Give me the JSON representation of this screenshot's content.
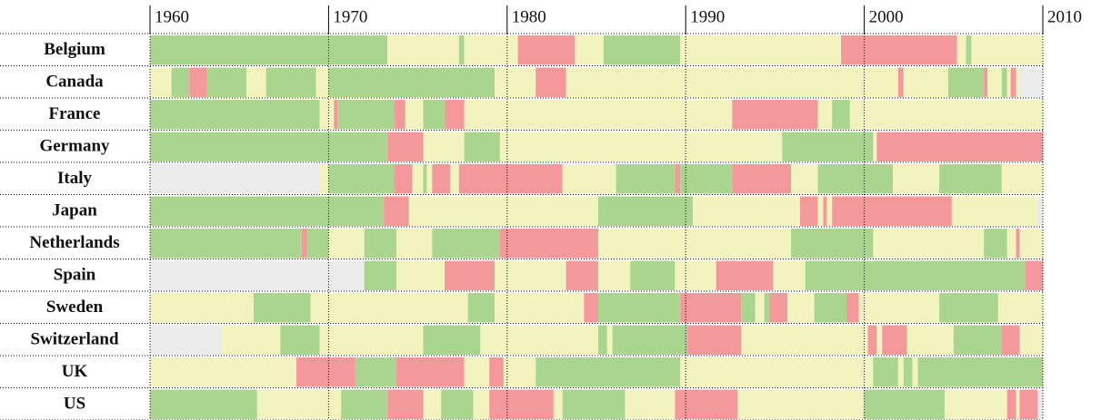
{
  "chart_data": {
    "type": "timeline",
    "xlim": [
      1960,
      2010
    ],
    "xticks": [
      1960,
      1970,
      1980,
      1990,
      2000,
      2010
    ],
    "palette": {
      "g": "#a9d58f",
      "y": "#f3f3c0",
      "r": "#f4989c",
      "n": "#ebebeb"
    },
    "rows": [
      {
        "name": "Belgium",
        "segments": [
          [
            1960,
            1973.3,
            "g"
          ],
          [
            1973.3,
            1977.3,
            "y"
          ],
          [
            1977.3,
            1977.6,
            "g"
          ],
          [
            1977.6,
            1980.6,
            "y"
          ],
          [
            1980.6,
            1983.8,
            "r"
          ],
          [
            1983.8,
            1985.4,
            "y"
          ],
          [
            1985.4,
            1989.7,
            "g"
          ],
          [
            1989.7,
            1998.7,
            "y"
          ],
          [
            1998.7,
            2005.2,
            "r"
          ],
          [
            2005.2,
            2005.7,
            "y"
          ],
          [
            2005.7,
            2006,
            "g"
          ],
          [
            2006,
            2010,
            "y"
          ]
        ]
      },
      {
        "name": "Canada",
        "segments": [
          [
            1960,
            1961.2,
            "y"
          ],
          [
            1961.2,
            1962.2,
            "g"
          ],
          [
            1962.2,
            1963.2,
            "r"
          ],
          [
            1963.2,
            1965.4,
            "g"
          ],
          [
            1965.4,
            1966.5,
            "y"
          ],
          [
            1966.5,
            1969.3,
            "g"
          ],
          [
            1969.3,
            1970,
            "y"
          ],
          [
            1970,
            1979.3,
            "g"
          ],
          [
            1979.3,
            1981.6,
            "y"
          ],
          [
            1981.6,
            1983.3,
            "r"
          ],
          [
            1983.3,
            2001.9,
            "y"
          ],
          [
            2001.9,
            2002.2,
            "r"
          ],
          [
            2002.2,
            2004.7,
            "y"
          ],
          [
            2004.7,
            2006.7,
            "g"
          ],
          [
            2006.7,
            2006.9,
            "r"
          ],
          [
            2006.9,
            2007.7,
            "y"
          ],
          [
            2007.7,
            2008,
            "g"
          ],
          [
            2008,
            2008.2,
            "y"
          ],
          [
            2008.2,
            2008.5,
            "r"
          ],
          [
            2008.5,
            2008.7,
            "y"
          ],
          [
            2008.7,
            2010,
            "n"
          ]
        ]
      },
      {
        "name": "France",
        "segments": [
          [
            1960,
            1969.5,
            "g"
          ],
          [
            1969.5,
            1970.3,
            "y"
          ],
          [
            1970.3,
            1970.5,
            "r"
          ],
          [
            1970.5,
            1973.7,
            "g"
          ],
          [
            1973.7,
            1974.3,
            "r"
          ],
          [
            1974.3,
            1975.3,
            "y"
          ],
          [
            1975.3,
            1976.5,
            "g"
          ],
          [
            1976.5,
            1977.6,
            "r"
          ],
          [
            1977.6,
            1992.6,
            "y"
          ],
          [
            1992.6,
            1997.4,
            "r"
          ],
          [
            1997.4,
            1998.2,
            "y"
          ],
          [
            1998.2,
            1999.2,
            "g"
          ],
          [
            1999.2,
            2010,
            "y"
          ]
        ]
      },
      {
        "name": "Germany",
        "segments": [
          [
            1960,
            1973.3,
            "g"
          ],
          [
            1973.3,
            1975.3,
            "r"
          ],
          [
            1975.3,
            1977.6,
            "y"
          ],
          [
            1977.6,
            1979.6,
            "g"
          ],
          [
            1979.6,
            1995.4,
            "y"
          ],
          [
            1995.4,
            2000.5,
            "g"
          ],
          [
            2000.5,
            2000.7,
            "y"
          ],
          [
            2000.7,
            2010,
            "r"
          ]
        ]
      },
      {
        "name": "Italy",
        "segments": [
          [
            1960,
            1969.5,
            "n"
          ],
          [
            1969.5,
            1970,
            "y"
          ],
          [
            1970,
            1973.7,
            "g"
          ],
          [
            1973.7,
            1974.7,
            "r"
          ],
          [
            1974.7,
            1975.3,
            "y"
          ],
          [
            1975.3,
            1975.5,
            "g"
          ],
          [
            1975.5,
            1975.8,
            "y"
          ],
          [
            1975.8,
            1976.8,
            "r"
          ],
          [
            1976.8,
            1977.3,
            "y"
          ],
          [
            1977.3,
            1983.1,
            "r"
          ],
          [
            1983.1,
            1986.1,
            "y"
          ],
          [
            1986.1,
            1989.4,
            "g"
          ],
          [
            1989.4,
            1989.7,
            "r"
          ],
          [
            1989.7,
            1992.6,
            "g"
          ],
          [
            1992.6,
            1995.9,
            "r"
          ],
          [
            1995.9,
            1997.4,
            "y"
          ],
          [
            1997.4,
            2001.6,
            "g"
          ],
          [
            2001.6,
            2004.2,
            "y"
          ],
          [
            2004.2,
            2007.7,
            "g"
          ],
          [
            2007.7,
            2010,
            "y"
          ]
        ]
      },
      {
        "name": "Japan",
        "segments": [
          [
            1960,
            1973.1,
            "g"
          ],
          [
            1973.1,
            1974.5,
            "r"
          ],
          [
            1974.5,
            1985.1,
            "y"
          ],
          [
            1985.1,
            1990.4,
            "g"
          ],
          [
            1990.4,
            1996.4,
            "y"
          ],
          [
            1996.4,
            1997.4,
            "r"
          ],
          [
            1997.4,
            1997.7,
            "y"
          ],
          [
            1997.7,
            1997.9,
            "r"
          ],
          [
            1997.9,
            1998.2,
            "y"
          ],
          [
            1998.2,
            2004.9,
            "r"
          ],
          [
            2004.9,
            2009.7,
            "y"
          ],
          [
            2009.7,
            2010,
            "n"
          ]
        ]
      },
      {
        "name": "Netherlands",
        "segments": [
          [
            1960,
            1968.5,
            "g"
          ],
          [
            1968.5,
            1968.8,
            "r"
          ],
          [
            1968.8,
            1970,
            "g"
          ],
          [
            1970,
            1972,
            "y"
          ],
          [
            1972,
            1973.8,
            "g"
          ],
          [
            1973.8,
            1975.8,
            "y"
          ],
          [
            1975.8,
            1979.6,
            "g"
          ],
          [
            1979.6,
            1985.1,
            "r"
          ],
          [
            1985.1,
            1995.9,
            "y"
          ],
          [
            1995.9,
            2000.5,
            "g"
          ],
          [
            2000.5,
            2006.7,
            "y"
          ],
          [
            2006.7,
            2008,
            "g"
          ],
          [
            2008,
            2008.5,
            "y"
          ],
          [
            2008.5,
            2008.7,
            "r"
          ],
          [
            2008.7,
            2010,
            "y"
          ]
        ]
      },
      {
        "name": "Spain",
        "segments": [
          [
            1960,
            1972,
            "n"
          ],
          [
            1972,
            1973.8,
            "g"
          ],
          [
            1973.8,
            1976.5,
            "y"
          ],
          [
            1976.5,
            1979.3,
            "r"
          ],
          [
            1979.3,
            1983.3,
            "y"
          ],
          [
            1983.3,
            1985.1,
            "r"
          ],
          [
            1985.1,
            1986.9,
            "y"
          ],
          [
            1986.9,
            1989.4,
            "g"
          ],
          [
            1989.4,
            1991.7,
            "y"
          ],
          [
            1991.7,
            1994.9,
            "r"
          ],
          [
            1994.9,
            1996.7,
            "y"
          ],
          [
            1996.7,
            2009,
            "g"
          ],
          [
            2009,
            2010,
            "r"
          ]
        ]
      },
      {
        "name": "Sweden",
        "segments": [
          [
            1960,
            1965.8,
            "y"
          ],
          [
            1965.8,
            1969,
            "g"
          ],
          [
            1969,
            1977.8,
            "y"
          ],
          [
            1977.8,
            1979.3,
            "g"
          ],
          [
            1979.3,
            1984.3,
            "y"
          ],
          [
            1984.3,
            1985.1,
            "r"
          ],
          [
            1985.1,
            1989.7,
            "g"
          ],
          [
            1989.7,
            1993.1,
            "r"
          ],
          [
            1993.1,
            1993.9,
            "g"
          ],
          [
            1993.9,
            1994.4,
            "y"
          ],
          [
            1994.4,
            1994.7,
            "g"
          ],
          [
            1994.7,
            1995.7,
            "r"
          ],
          [
            1995.7,
            1997.2,
            "y"
          ],
          [
            1997.2,
            1999,
            "g"
          ],
          [
            1999,
            1999.7,
            "r"
          ],
          [
            1999.7,
            2004.2,
            "y"
          ],
          [
            2004.2,
            2007.5,
            "g"
          ],
          [
            2007.5,
            2010,
            "y"
          ]
        ]
      },
      {
        "name": "Switzerland",
        "segments": [
          [
            1960,
            1964,
            "n"
          ],
          [
            1964,
            1967.3,
            "y"
          ],
          [
            1967.3,
            1969.5,
            "g"
          ],
          [
            1969.5,
            1975.3,
            "y"
          ],
          [
            1975.3,
            1978.5,
            "g"
          ],
          [
            1978.5,
            1985.1,
            "y"
          ],
          [
            1985.1,
            1985.6,
            "g"
          ],
          [
            1985.6,
            1985.9,
            "y"
          ],
          [
            1985.9,
            1990.1,
            "g"
          ],
          [
            1990.1,
            1993.1,
            "r"
          ],
          [
            1993.1,
            2000.2,
            "y"
          ],
          [
            2000.2,
            2000.7,
            "r"
          ],
          [
            2000.7,
            2001,
            "y"
          ],
          [
            2001,
            2002.4,
            "r"
          ],
          [
            2002.4,
            2005,
            "y"
          ],
          [
            2005,
            2007.7,
            "g"
          ],
          [
            2007.7,
            2008.7,
            "r"
          ],
          [
            2008.7,
            2010,
            "y"
          ]
        ]
      },
      {
        "name": "UK",
        "segments": [
          [
            1960,
            1968.2,
            "y"
          ],
          [
            1968.2,
            1971.5,
            "r"
          ],
          [
            1971.5,
            1973.8,
            "g"
          ],
          [
            1973.8,
            1977.6,
            "r"
          ],
          [
            1977.6,
            1979,
            "y"
          ],
          [
            1979,
            1979.8,
            "r"
          ],
          [
            1979.8,
            1981.6,
            "y"
          ],
          [
            1981.6,
            1989.7,
            "g"
          ],
          [
            1989.7,
            2000.5,
            "y"
          ],
          [
            2000.5,
            2001.9,
            "g"
          ],
          [
            2001.9,
            2002.2,
            "y"
          ],
          [
            2002.2,
            2002.7,
            "g"
          ],
          [
            2002.7,
            2003,
            "y"
          ],
          [
            2003,
            2010,
            "g"
          ]
        ]
      },
      {
        "name": "US",
        "segments": [
          [
            1960,
            1966,
            "g"
          ],
          [
            1966,
            1970.7,
            "y"
          ],
          [
            1970.7,
            1973.3,
            "g"
          ],
          [
            1973.3,
            1975.3,
            "r"
          ],
          [
            1975.3,
            1976.3,
            "y"
          ],
          [
            1976.3,
            1978.1,
            "g"
          ],
          [
            1978.1,
            1979,
            "y"
          ],
          [
            1979,
            1982.6,
            "r"
          ],
          [
            1982.6,
            1983.1,
            "y"
          ],
          [
            1983.1,
            1986.6,
            "g"
          ],
          [
            1986.6,
            1989.4,
            "y"
          ],
          [
            1989.4,
            1992.9,
            "r"
          ],
          [
            1992.9,
            2000,
            "y"
          ],
          [
            2000,
            2004.5,
            "g"
          ],
          [
            2004.5,
            2008,
            "y"
          ],
          [
            2008,
            2008.5,
            "r"
          ],
          [
            2008.5,
            2008.7,
            "y"
          ],
          [
            2008.7,
            2009.7,
            "r"
          ],
          [
            2009.7,
            2010,
            "n"
          ]
        ]
      }
    ]
  }
}
